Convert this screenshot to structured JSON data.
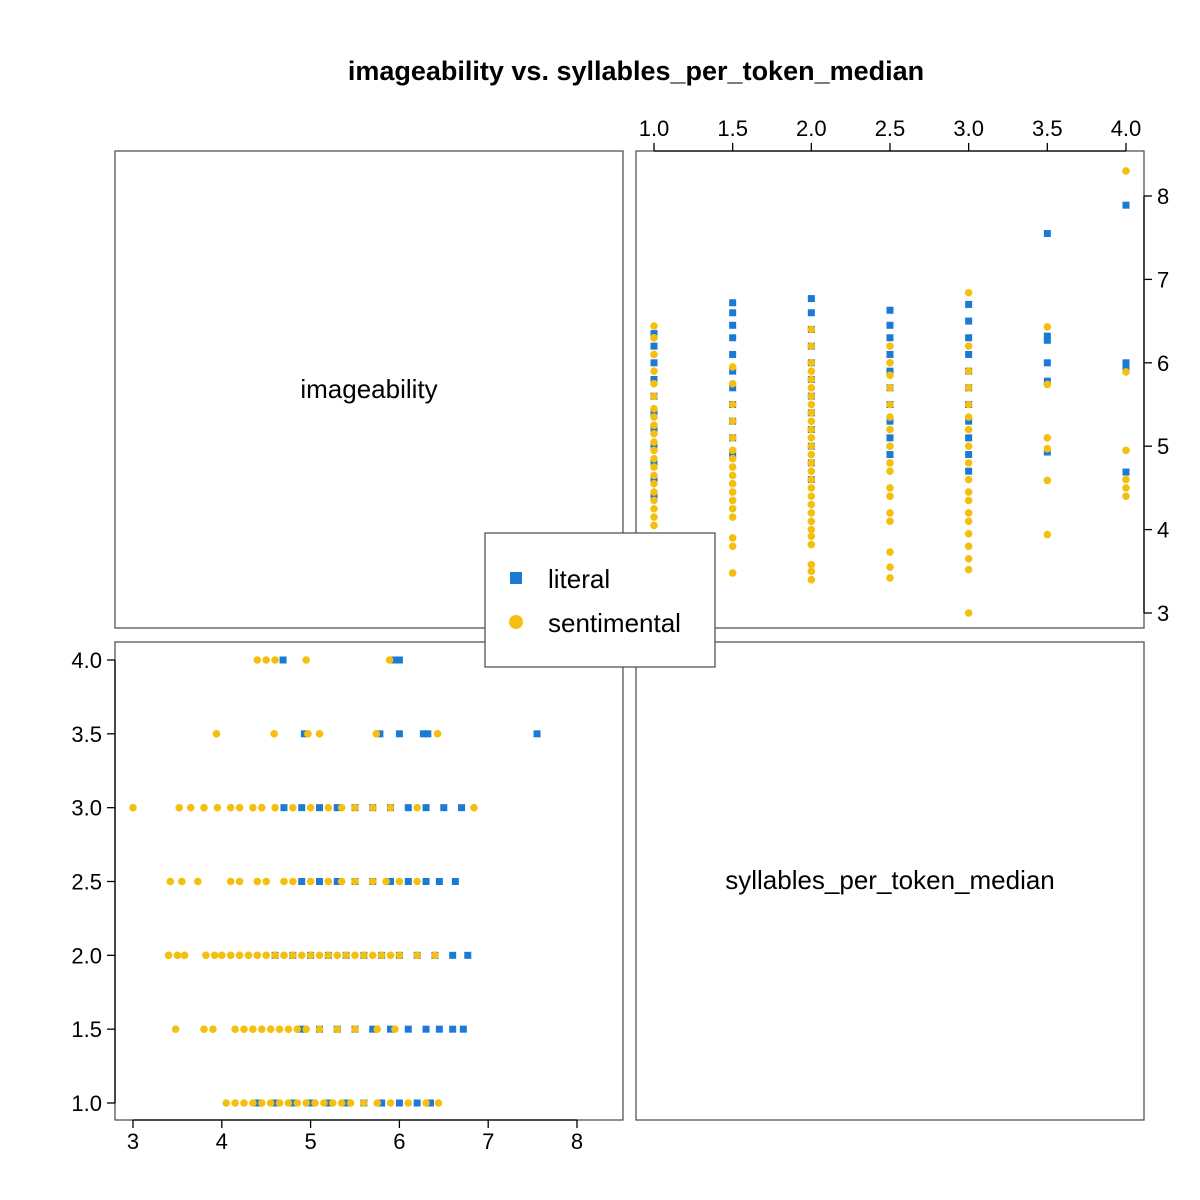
{
  "chart_data": {
    "type": "scatter",
    "title": "imageability vs. syllables_per_token_median",
    "variables": [
      "imageability",
      "syllables_per_token_median"
    ],
    "imageability_ticks": [
      3,
      4,
      5,
      6,
      7,
      8
    ],
    "imageability_ticks_right": [
      "3",
      "4",
      "5",
      "6",
      "7",
      "8"
    ],
    "imageability_ticks_bottom": [
      "3",
      "4",
      "5",
      "6",
      "7",
      "8"
    ],
    "syllables_ticks": [
      1.0,
      1.5,
      2.0,
      2.5,
      3.0,
      3.5,
      4.0
    ],
    "syllables_tick_labels": [
      "1.0",
      "1.5",
      "2.0",
      "2.5",
      "3.0",
      "3.5",
      "4.0"
    ],
    "imageability_range": [
      2.9,
      8.5
    ],
    "syllables_range": [
      0.9,
      4.1
    ],
    "legend": {
      "placement": "center",
      "items": [
        "literal",
        "sentimental"
      ]
    },
    "colors": {
      "literal": "#1a7ad4",
      "sentimental": "#f5bf0f",
      "frame": "#555555"
    },
    "series": [
      {
        "name": "literal",
        "marker": "square",
        "points": [
          {
            "x": 1.0,
            "y": 4.4
          },
          {
            "x": 1.0,
            "y": 4.6
          },
          {
            "x": 1.0,
            "y": 4.8
          },
          {
            "x": 1.0,
            "y": 5.0
          },
          {
            "x": 1.0,
            "y": 5.2
          },
          {
            "x": 1.0,
            "y": 5.4
          },
          {
            "x": 1.0,
            "y": 5.6
          },
          {
            "x": 1.0,
            "y": 5.8
          },
          {
            "x": 1.0,
            "y": 6.0
          },
          {
            "x": 1.0,
            "y": 6.2
          },
          {
            "x": 1.0,
            "y": 6.35
          },
          {
            "x": 1.5,
            "y": 4.9
          },
          {
            "x": 1.5,
            "y": 5.1
          },
          {
            "x": 1.5,
            "y": 5.3
          },
          {
            "x": 1.5,
            "y": 5.5
          },
          {
            "x": 1.5,
            "y": 5.7
          },
          {
            "x": 1.5,
            "y": 5.9
          },
          {
            "x": 1.5,
            "y": 6.1
          },
          {
            "x": 1.5,
            "y": 6.3
          },
          {
            "x": 1.5,
            "y": 6.45
          },
          {
            "x": 1.5,
            "y": 6.6
          },
          {
            "x": 1.5,
            "y": 6.72
          },
          {
            "x": 2.0,
            "y": 4.6
          },
          {
            "x": 2.0,
            "y": 4.8
          },
          {
            "x": 2.0,
            "y": 5.0
          },
          {
            "x": 2.0,
            "y": 5.2
          },
          {
            "x": 2.0,
            "y": 5.4
          },
          {
            "x": 2.0,
            "y": 5.6
          },
          {
            "x": 2.0,
            "y": 5.8
          },
          {
            "x": 2.0,
            "y": 6.0
          },
          {
            "x": 2.0,
            "y": 6.2
          },
          {
            "x": 2.0,
            "y": 6.4
          },
          {
            "x": 2.0,
            "y": 6.6
          },
          {
            "x": 2.0,
            "y": 6.77
          },
          {
            "x": 2.5,
            "y": 4.9
          },
          {
            "x": 2.5,
            "y": 5.1
          },
          {
            "x": 2.5,
            "y": 5.3
          },
          {
            "x": 2.5,
            "y": 5.5
          },
          {
            "x": 2.5,
            "y": 5.7
          },
          {
            "x": 2.5,
            "y": 5.9
          },
          {
            "x": 2.5,
            "y": 6.1
          },
          {
            "x": 2.5,
            "y": 6.3
          },
          {
            "x": 2.5,
            "y": 6.45
          },
          {
            "x": 2.5,
            "y": 6.63
          },
          {
            "x": 3.0,
            "y": 4.7
          },
          {
            "x": 3.0,
            "y": 4.9
          },
          {
            "x": 3.0,
            "y": 5.1
          },
          {
            "x": 3.0,
            "y": 5.3
          },
          {
            "x": 3.0,
            "y": 5.5
          },
          {
            "x": 3.0,
            "y": 5.7
          },
          {
            "x": 3.0,
            "y": 5.9
          },
          {
            "x": 3.0,
            "y": 6.1
          },
          {
            "x": 3.0,
            "y": 6.3
          },
          {
            "x": 3.0,
            "y": 6.5
          },
          {
            "x": 3.0,
            "y": 6.7
          },
          {
            "x": 3.5,
            "y": 4.93
          },
          {
            "x": 3.5,
            "y": 5.78
          },
          {
            "x": 3.5,
            "y": 6.0
          },
          {
            "x": 3.5,
            "y": 6.27
          },
          {
            "x": 3.5,
            "y": 6.32
          },
          {
            "x": 3.5,
            "y": 7.55
          },
          {
            "x": 4.0,
            "y": 4.69
          },
          {
            "x": 4.0,
            "y": 5.94
          },
          {
            "x": 4.0,
            "y": 6.0
          },
          {
            "x": 4.0,
            "y": 7.89
          }
        ]
      },
      {
        "name": "sentimental",
        "marker": "circle",
        "points": [
          {
            "x": 1.0,
            "y": 4.05
          },
          {
            "x": 1.0,
            "y": 4.15
          },
          {
            "x": 1.0,
            "y": 4.25
          },
          {
            "x": 1.0,
            "y": 4.35
          },
          {
            "x": 1.0,
            "y": 4.45
          },
          {
            "x": 1.0,
            "y": 4.55
          },
          {
            "x": 1.0,
            "y": 4.65
          },
          {
            "x": 1.0,
            "y": 4.75
          },
          {
            "x": 1.0,
            "y": 4.85
          },
          {
            "x": 1.0,
            "y": 4.95
          },
          {
            "x": 1.0,
            "y": 5.05
          },
          {
            "x": 1.0,
            "y": 5.15
          },
          {
            "x": 1.0,
            "y": 5.25
          },
          {
            "x": 1.0,
            "y": 5.35
          },
          {
            "x": 1.0,
            "y": 5.45
          },
          {
            "x": 1.0,
            "y": 5.6
          },
          {
            "x": 1.0,
            "y": 5.75
          },
          {
            "x": 1.0,
            "y": 5.9
          },
          {
            "x": 1.0,
            "y": 6.1
          },
          {
            "x": 1.0,
            "y": 6.3
          },
          {
            "x": 1.0,
            "y": 6.44
          },
          {
            "x": 1.5,
            "y": 3.48
          },
          {
            "x": 1.5,
            "y": 3.8
          },
          {
            "x": 1.5,
            "y": 3.9
          },
          {
            "x": 1.5,
            "y": 4.15
          },
          {
            "x": 1.5,
            "y": 4.25
          },
          {
            "x": 1.5,
            "y": 4.35
          },
          {
            "x": 1.5,
            "y": 4.45
          },
          {
            "x": 1.5,
            "y": 4.55
          },
          {
            "x": 1.5,
            "y": 4.65
          },
          {
            "x": 1.5,
            "y": 4.75
          },
          {
            "x": 1.5,
            "y": 4.85
          },
          {
            "x": 1.5,
            "y": 4.95
          },
          {
            "x": 1.5,
            "y": 5.1
          },
          {
            "x": 1.5,
            "y": 5.3
          },
          {
            "x": 1.5,
            "y": 5.5
          },
          {
            "x": 1.5,
            "y": 5.75
          },
          {
            "x": 1.5,
            "y": 5.95
          },
          {
            "x": 2.0,
            "y": 3.4
          },
          {
            "x": 2.0,
            "y": 3.5
          },
          {
            "x": 2.0,
            "y": 3.58
          },
          {
            "x": 2.0,
            "y": 3.82
          },
          {
            "x": 2.0,
            "y": 3.92
          },
          {
            "x": 2.0,
            "y": 4.0
          },
          {
            "x": 2.0,
            "y": 4.1
          },
          {
            "x": 2.0,
            "y": 4.2
          },
          {
            "x": 2.0,
            "y": 4.3
          },
          {
            "x": 2.0,
            "y": 4.4
          },
          {
            "x": 2.0,
            "y": 4.5
          },
          {
            "x": 2.0,
            "y": 4.6
          },
          {
            "x": 2.0,
            "y": 4.7
          },
          {
            "x": 2.0,
            "y": 4.8
          },
          {
            "x": 2.0,
            "y": 4.9
          },
          {
            "x": 2.0,
            "y": 5.0
          },
          {
            "x": 2.0,
            "y": 5.1
          },
          {
            "x": 2.0,
            "y": 5.2
          },
          {
            "x": 2.0,
            "y": 5.3
          },
          {
            "x": 2.0,
            "y": 5.4
          },
          {
            "x": 2.0,
            "y": 5.5
          },
          {
            "x": 2.0,
            "y": 5.6
          },
          {
            "x": 2.0,
            "y": 5.7
          },
          {
            "x": 2.0,
            "y": 5.8
          },
          {
            "x": 2.0,
            "y": 5.9
          },
          {
            "x": 2.0,
            "y": 6.0
          },
          {
            "x": 2.0,
            "y": 6.2
          },
          {
            "x": 2.0,
            "y": 6.4
          },
          {
            "x": 2.5,
            "y": 3.42
          },
          {
            "x": 2.5,
            "y": 3.55
          },
          {
            "x": 2.5,
            "y": 3.73
          },
          {
            "x": 2.5,
            "y": 4.1
          },
          {
            "x": 2.5,
            "y": 4.2
          },
          {
            "x": 2.5,
            "y": 4.4
          },
          {
            "x": 2.5,
            "y": 4.5
          },
          {
            "x": 2.5,
            "y": 4.7
          },
          {
            "x": 2.5,
            "y": 4.8
          },
          {
            "x": 2.5,
            "y": 5.0
          },
          {
            "x": 2.5,
            "y": 5.2
          },
          {
            "x": 2.5,
            "y": 5.35
          },
          {
            "x": 2.5,
            "y": 5.5
          },
          {
            "x": 2.5,
            "y": 5.7
          },
          {
            "x": 2.5,
            "y": 5.85
          },
          {
            "x": 2.5,
            "y": 6.0
          },
          {
            "x": 2.5,
            "y": 6.2
          },
          {
            "x": 3.0,
            "y": 3.0
          },
          {
            "x": 3.0,
            "y": 3.52
          },
          {
            "x": 3.0,
            "y": 3.65
          },
          {
            "x": 3.0,
            "y": 3.8
          },
          {
            "x": 3.0,
            "y": 3.95
          },
          {
            "x": 3.0,
            "y": 4.1
          },
          {
            "x": 3.0,
            "y": 4.2
          },
          {
            "x": 3.0,
            "y": 4.35
          },
          {
            "x": 3.0,
            "y": 4.45
          },
          {
            "x": 3.0,
            "y": 4.6
          },
          {
            "x": 3.0,
            "y": 4.8
          },
          {
            "x": 3.0,
            "y": 5.0
          },
          {
            "x": 3.0,
            "y": 5.2
          },
          {
            "x": 3.0,
            "y": 5.35
          },
          {
            "x": 3.0,
            "y": 5.5
          },
          {
            "x": 3.0,
            "y": 5.7
          },
          {
            "x": 3.0,
            "y": 5.9
          },
          {
            "x": 3.0,
            "y": 6.2
          },
          {
            "x": 3.0,
            "y": 6.84
          },
          {
            "x": 3.5,
            "y": 3.94
          },
          {
            "x": 3.5,
            "y": 4.59
          },
          {
            "x": 3.5,
            "y": 4.97
          },
          {
            "x": 3.5,
            "y": 5.1
          },
          {
            "x": 3.5,
            "y": 5.74
          },
          {
            "x": 3.5,
            "y": 6.43
          },
          {
            "x": 4.0,
            "y": 4.4
          },
          {
            "x": 4.0,
            "y": 4.5
          },
          {
            "x": 4.0,
            "y": 4.6
          },
          {
            "x": 4.0,
            "y": 4.95
          },
          {
            "x": 4.0,
            "y": 5.89
          },
          {
            "x": 4.0,
            "y": 8.3
          }
        ]
      }
    ]
  }
}
